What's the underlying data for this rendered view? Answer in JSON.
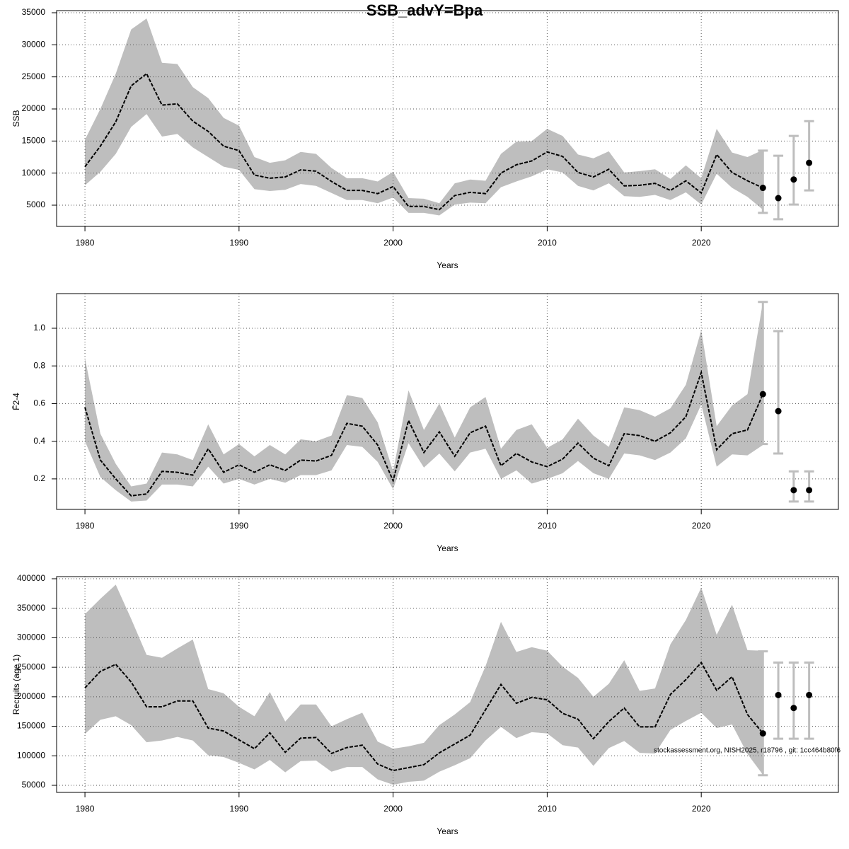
{
  "title": "SSB_advY=Bpa",
  "chart_data": [
    {
      "type": "line",
      "ylabel": "SSB",
      "xlabel": "Years",
      "xlim": [
        1978.16,
        2028.9
      ],
      "xticks": [
        1980,
        1990,
        2000,
        2010,
        2020
      ],
      "ylim": [
        1690,
        35330
      ],
      "yticks": [
        5000,
        10000,
        15000,
        20000,
        25000,
        30000,
        35000
      ],
      "grid": true,
      "color": "#000000",
      "band_color": "#bebebe",
      "x": [
        1980,
        1981,
        1982,
        1983,
        1984,
        1985,
        1986,
        1987,
        1988,
        1989,
        1990,
        1991,
        1992,
        1993,
        1994,
        1995,
        1996,
        1997,
        1998,
        1999,
        2000,
        2001,
        2002,
        2003,
        2004,
        2005,
        2006,
        2007,
        2008,
        2009,
        2010,
        2011,
        2012,
        2013,
        2014,
        2015,
        2016,
        2017,
        2018,
        2019,
        2020,
        2021,
        2022,
        2023,
        2024
      ],
      "values": [
        11000,
        14200,
        18000,
        23600,
        25500,
        20600,
        20800,
        18100,
        16500,
        14200,
        13500,
        9700,
        9200,
        9400,
        10500,
        10300,
        8700,
        7300,
        7300,
        6800,
        7900,
        4800,
        4800,
        4300,
        6500,
        7000,
        6800,
        10000,
        11300,
        11900,
        13300,
        12600,
        10100,
        9400,
        10600,
        8000,
        8100,
        8400,
        7300,
        8800,
        6900,
        12900,
        10100,
        8800,
        7700
      ],
      "upper": [
        15200,
        20000,
        25500,
        32400,
        34100,
        27200,
        27000,
        23400,
        21700,
        18600,
        17400,
        12500,
        11600,
        12000,
        13300,
        13000,
        10800,
        9200,
        9200,
        8700,
        10200,
        6100,
        6000,
        5300,
        8400,
        9000,
        8800,
        13000,
        14900,
        15000,
        16900,
        15800,
        12900,
        12300,
        13400,
        10100,
        10300,
        10600,
        9100,
        11200,
        9200,
        16900,
        13200,
        12500,
        13600
      ],
      "lower": [
        8100,
        10200,
        13000,
        17200,
        19200,
        15700,
        16100,
        14000,
        12500,
        11000,
        10500,
        7500,
        7200,
        7400,
        8300,
        8000,
        6900,
        5800,
        5800,
        5300,
        6200,
        3800,
        3800,
        3400,
        5100,
        5400,
        5300,
        7800,
        8700,
        9500,
        10600,
        10100,
        8000,
        7300,
        8400,
        6400,
        6300,
        6600,
        5800,
        7000,
        5100,
        9900,
        7700,
        6300,
        4300
      ],
      "forecast": {
        "x": [
          2024,
          2025,
          2026,
          2027
        ],
        "values": [
          7700,
          6100,
          9000,
          11600
        ],
        "lower": [
          3800,
          2800,
          5100,
          7300
        ],
        "upper": [
          13500,
          12700,
          15800,
          18100
        ],
        "color": "#000000",
        "bar_color": "#bebebe"
      }
    },
    {
      "type": "line",
      "ylabel": "F̄2-4",
      "xlabel": "Years",
      "xlim": [
        1978.16,
        2028.9
      ],
      "xticks": [
        1980,
        1990,
        2000,
        2010,
        2020
      ],
      "ylim": [
        0.038,
        1.184
      ],
      "yticks": [
        0.2,
        0.4,
        0.6,
        0.8,
        {
          "value": 1,
          "label": "1.0"
        }
      ],
      "grid": true,
      "color": "#000000",
      "band_color": "#bebebe",
      "x": [
        1980,
        1981,
        1982,
        1983,
        1984,
        1985,
        1986,
        1987,
        1988,
        1989,
        1990,
        1991,
        1992,
        1993,
        1994,
        1995,
        1996,
        1997,
        1998,
        1999,
        2000,
        2001,
        2002,
        2003,
        2004,
        2005,
        2006,
        2007,
        2008,
        2009,
        2010,
        2011,
        2012,
        2013,
        2014,
        2015,
        2016,
        2017,
        2018,
        2019,
        2020,
        2021,
        2022,
        2023,
        2024
      ],
      "values": [
        0.58,
        0.3,
        0.2,
        0.11,
        0.12,
        0.24,
        0.235,
        0.22,
        0.36,
        0.235,
        0.275,
        0.235,
        0.275,
        0.245,
        0.3,
        0.295,
        0.325,
        0.495,
        0.48,
        0.38,
        0.19,
        0.51,
        0.34,
        0.45,
        0.32,
        0.445,
        0.48,
        0.27,
        0.335,
        0.29,
        0.265,
        0.305,
        0.39,
        0.31,
        0.27,
        0.44,
        0.43,
        0.4,
        0.445,
        0.53,
        0.765,
        0.355,
        0.44,
        0.46,
        0.65
      ],
      "upper": [
        0.84,
        0.44,
        0.28,
        0.16,
        0.175,
        0.34,
        0.33,
        0.3,
        0.49,
        0.33,
        0.385,
        0.32,
        0.38,
        0.33,
        0.41,
        0.4,
        0.43,
        0.645,
        0.63,
        0.5,
        0.24,
        0.67,
        0.46,
        0.6,
        0.42,
        0.58,
        0.635,
        0.36,
        0.46,
        0.49,
        0.365,
        0.41,
        0.52,
        0.43,
        0.37,
        0.58,
        0.565,
        0.53,
        0.575,
        0.7,
        0.99,
        0.48,
        0.59,
        0.65,
        1.14
      ],
      "lower": [
        0.4,
        0.21,
        0.14,
        0.08,
        0.085,
        0.17,
        0.17,
        0.16,
        0.265,
        0.175,
        0.2,
        0.17,
        0.2,
        0.18,
        0.22,
        0.22,
        0.245,
        0.38,
        0.37,
        0.29,
        0.145,
        0.39,
        0.26,
        0.335,
        0.24,
        0.34,
        0.36,
        0.2,
        0.245,
        0.175,
        0.2,
        0.23,
        0.295,
        0.23,
        0.2,
        0.335,
        0.325,
        0.3,
        0.34,
        0.415,
        0.595,
        0.265,
        0.33,
        0.325,
        0.38
      ],
      "forecast": {
        "x": [
          2024,
          2025,
          2026,
          2027
        ],
        "values": [
          0.65,
          0.56,
          0.14,
          0.14
        ],
        "lower": [
          0.385,
          0.335,
          0.08,
          0.08
        ],
        "upper": [
          1.14,
          0.985,
          0.24,
          0.24
        ],
        "color": "#000000",
        "bar_color": "#bebebe"
      }
    },
    {
      "type": "line",
      "ylabel": "Recruits (age 1)",
      "xlabel": "Years",
      "annotation": "stockassessment.org, NISH2025, r18796 , git: 1cc464b80f6",
      "xlim": [
        1978.16,
        2028.9
      ],
      "xticks": [
        1980,
        1990,
        2000,
        2010,
        2020
      ],
      "ylim": [
        38000,
        403600
      ],
      "yticks": [
        50000,
        100000,
        150000,
        200000,
        250000,
        300000,
        350000,
        400000
      ],
      "grid": true,
      "color": "#000000",
      "band_color": "#bebebe",
      "x": [
        1980,
        1981,
        1982,
        1983,
        1984,
        1985,
        1986,
        1987,
        1988,
        1989,
        1990,
        1991,
        1992,
        1993,
        1994,
        1995,
        1996,
        1997,
        1998,
        1999,
        2000,
        2001,
        2002,
        2003,
        2004,
        2005,
        2006,
        2007,
        2008,
        2009,
        2010,
        2011,
        2012,
        2013,
        2014,
        2015,
        2016,
        2017,
        2018,
        2019,
        2020,
        2021,
        2022,
        2023,
        2024
      ],
      "values": [
        215000,
        243000,
        255000,
        225000,
        183000,
        183000,
        193000,
        193000,
        147000,
        142000,
        127000,
        112000,
        139000,
        106000,
        130000,
        131000,
        104000,
        114000,
        118000,
        86000,
        75000,
        80000,
        85000,
        105000,
        120000,
        135000,
        178000,
        221000,
        189000,
        199000,
        195000,
        172000,
        162000,
        129000,
        158000,
        181000,
        149000,
        149000,
        204000,
        229000,
        258000,
        211000,
        234000,
        170000,
        138000
      ],
      "upper": [
        340000,
        366000,
        390000,
        332000,
        271000,
        266000,
        282000,
        297000,
        213000,
        206000,
        183000,
        167000,
        208000,
        158000,
        187000,
        187000,
        150000,
        162000,
        173000,
        124000,
        112000,
        116000,
        122000,
        152000,
        170000,
        191000,
        252000,
        327000,
        276000,
        284000,
        278000,
        251000,
        232000,
        200000,
        222000,
        262000,
        210000,
        214000,
        289000,
        330000,
        385000,
        305000,
        356000,
        279000,
        278000
      ],
      "lower": [
        137000,
        161000,
        167000,
        152000,
        123000,
        126000,
        132000,
        126000,
        101000,
        98000,
        88000,
        77000,
        93000,
        72000,
        91000,
        92000,
        73000,
        81000,
        81000,
        60000,
        51000,
        56000,
        58000,
        73000,
        84000,
        96000,
        126000,
        149000,
        130000,
        140000,
        138000,
        118000,
        114000,
        83000,
        113000,
        125000,
        105000,
        104000,
        144000,
        159000,
        173000,
        147000,
        153000,
        103000,
        68000
      ],
      "forecast": {
        "x": [
          2024,
          2025,
          2026,
          2027
        ],
        "values": [
          138000,
          203000,
          181000,
          203000
        ],
        "lower": [
          67000,
          129000,
          129000,
          129000
        ],
        "upper": [
          277000,
          258000,
          258000,
          258000
        ],
        "color": "#000000",
        "bar_color": "#bebebe"
      }
    }
  ]
}
